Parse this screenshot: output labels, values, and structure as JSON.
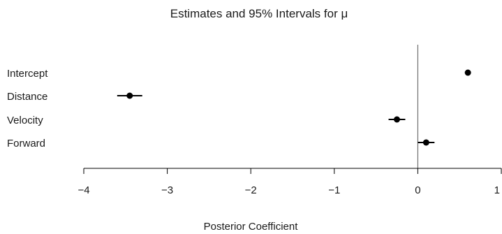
{
  "chart_data": {
    "type": "scatter",
    "title": "Estimates and 95% Intervals for μ",
    "xlabel": "Posterior Coefficient",
    "ylabel": "",
    "xlim": [
      -4,
      1
    ],
    "xticks": [
      -4,
      -3,
      -2,
      -1,
      0,
      1
    ],
    "xtick_labels": [
      "−4",
      "−3",
      "−2",
      "−1",
      "0",
      "1"
    ],
    "reference_line": 0,
    "grid": false,
    "legend": "none",
    "colors": {
      "point": "#000000",
      "axis": "#000000",
      "reference_line": "#555555"
    },
    "points": [
      {
        "label": "Intercept",
        "estimate": 0.6,
        "lower": 0.6,
        "upper": 0.6
      },
      {
        "label": "Distance",
        "estimate": -3.45,
        "lower": -3.6,
        "upper": -3.3
      },
      {
        "label": "Velocity",
        "estimate": -0.25,
        "lower": -0.35,
        "upper": -0.15
      },
      {
        "label": "Forward",
        "estimate": 0.1,
        "lower": 0.0,
        "upper": 0.2
      }
    ]
  }
}
